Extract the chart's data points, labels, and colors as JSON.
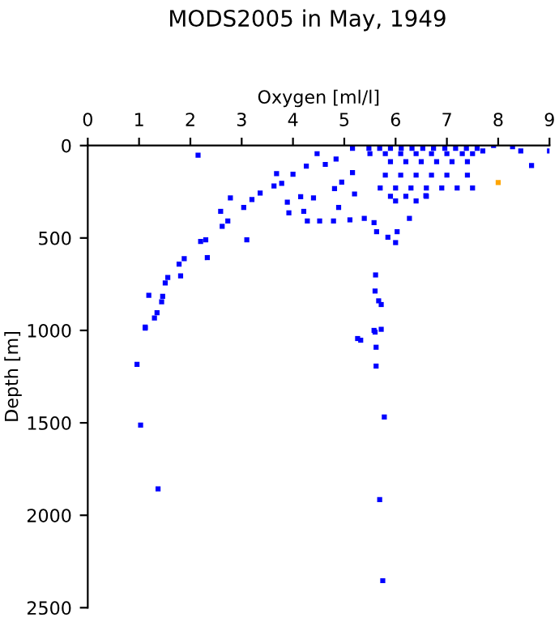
{
  "chart_data": {
    "type": "scatter",
    "title": "MODS2005 in May, 1949",
    "xlabel": "Oxygen [ml/l]",
    "ylabel": "Depth [m]",
    "xlim": [
      0,
      9
    ],
    "xticks": [
      0,
      1,
      2,
      3,
      4,
      5,
      6,
      7,
      8,
      9
    ],
    "ylim": [
      2500,
      0
    ],
    "yticks": [
      0,
      500,
      1000,
      1500,
      2000,
      2500
    ],
    "grid": false,
    "legend": false,
    "marker": "square",
    "series": [
      {
        "color": "#0000ff",
        "x": [
          2.15,
          4.47,
          4.63,
          4.84,
          5.16,
          4.26,
          3.68,
          4.0,
          3.78,
          3.63,
          3.36,
          3.2,
          3.04,
          2.73,
          2.62,
          2.3,
          2.2,
          1.88,
          1.78,
          1.56,
          1.51,
          1.46,
          1.44,
          1.35,
          1.3,
          1.12,
          1.19,
          2.78,
          2.59,
          3.1,
          2.33,
          1.81,
          1.12,
          0.96,
          1.03,
          1.37,
          5.32,
          5.6,
          5.72,
          5.62,
          5.62,
          5.78,
          5.69,
          5.75,
          5.61,
          5.6,
          5.67,
          5.72,
          5.58,
          5.26,
          5.63,
          5.85,
          6.03,
          6.0,
          5.58,
          3.92,
          4.21,
          4.28,
          4.52,
          4.79,
          5.11,
          5.39,
          4.89,
          5.2,
          4.81,
          4.95,
          5.16,
          4.15,
          4.4,
          3.89,
          5.48,
          5.69,
          5.9,
          6.11,
          6.32,
          6.53,
          6.74,
          6.96,
          7.17,
          7.38,
          7.59,
          5.5,
          5.8,
          6.1,
          6.4,
          6.7,
          7.0,
          7.3,
          7.5,
          5.9,
          6.2,
          6.5,
          6.8,
          7.1,
          7.4,
          7.91,
          8.28,
          8.44,
          8.65,
          9.0,
          7.7,
          5.8,
          6.1,
          6.4,
          6.7,
          7.0,
          7.4,
          5.7,
          6.0,
          6.3,
          6.6,
          6.9,
          7.2,
          7.5,
          5.9,
          6.2,
          6.6,
          6.0,
          6.4,
          6.27,
          6.59
        ],
        "values": [
          52,
          44,
          102,
          73,
          15,
          111,
          152,
          155,
          204,
          219,
          257,
          292,
          335,
          408,
          437,
          510,
          519,
          612,
          641,
          714,
          743,
          816,
          845,
          904,
          933,
          982,
          810,
          283,
          356,
          510,
          606,
          705,
          988,
          1184,
          1512,
          1857,
          1053,
          1009,
          994,
          1091,
          1193,
          1468,
          1915,
          2354,
          700,
          787,
          840,
          860,
          1000,
          1044,
          466,
          496,
          466,
          525,
          417,
          364,
          356,
          408,
          408,
          408,
          402,
          394,
          335,
          262,
          233,
          198,
          146,
          277,
          283,
          306,
          15,
          15,
          15,
          15,
          15,
          15,
          15,
          15,
          15,
          15,
          15,
          44,
          44,
          44,
          44,
          44,
          44,
          44,
          44,
          87,
          87,
          87,
          87,
          87,
          87,
          0,
          6,
          29,
          108,
          29,
          29,
          160,
          160,
          160,
          160,
          160,
          160,
          230,
          230,
          230,
          230,
          230,
          230,
          230,
          275,
          275,
          275,
          300,
          300,
          394,
          271
        ]
      },
      {
        "color": "#ffa500",
        "x": [
          8.0
        ],
        "values": [
          200
        ]
      }
    ]
  }
}
